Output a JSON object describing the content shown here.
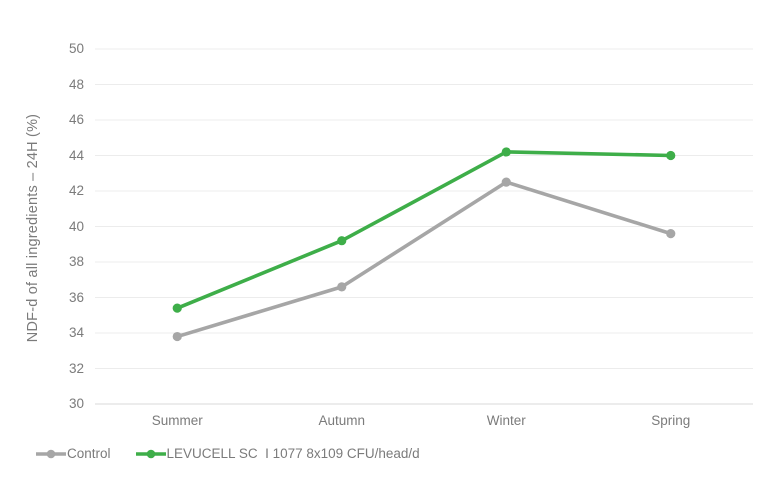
{
  "chart_data": {
    "type": "line",
    "title": "",
    "xlabel": "",
    "ylabel": "NDF-d of all ingredients – 24H (%)",
    "categories": [
      "Summer",
      "Autumn",
      "Winter",
      "Spring"
    ],
    "series": [
      {
        "name": "Control",
        "color": "#A6A6A6",
        "values": [
          33.8,
          36.6,
          42.5,
          39.6
        ]
      },
      {
        "name": "LEVUCELL SC  I 1077 8x109 CFU/head/d",
        "color": "#3EAE49",
        "values": [
          35.4,
          39.2,
          44.2,
          44.0
        ]
      }
    ],
    "ylim": [
      30,
      50
    ],
    "ytick_step": 2,
    "grid": true,
    "legend_position": "bottom-left",
    "colors": {
      "gridline": "#ECECEC",
      "axis_line": "#D9D9D9",
      "text": "#7B7B7B",
      "background": "#FFFFFF"
    }
  }
}
